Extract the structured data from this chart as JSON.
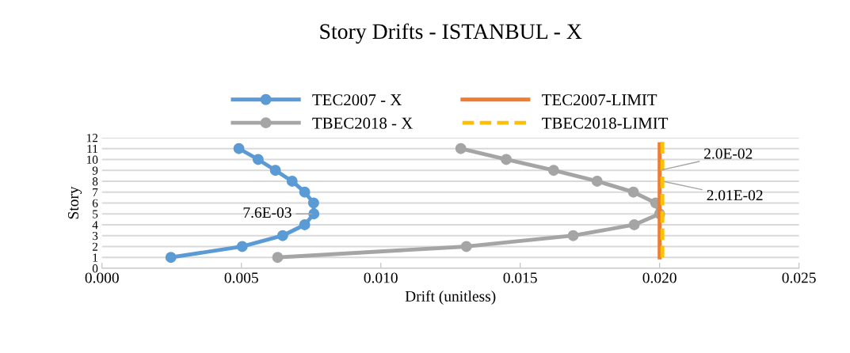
{
  "chart_data": {
    "type": "line",
    "title": "Story Drifts - ISTANBUL - X",
    "xlabel": "Drift (unitless)",
    "ylabel": "Story",
    "xlim": [
      0,
      0.025
    ],
    "xticks": [
      {
        "value": 0,
        "label": "0.000"
      },
      {
        "value": 0.005,
        "label": "0.005"
      },
      {
        "value": 0.01,
        "label": "0.010"
      },
      {
        "value": 0.015,
        "label": "0.015"
      },
      {
        "value": 0.02,
        "label": "0.020"
      },
      {
        "value": 0.025,
        "label": "0.025"
      }
    ],
    "ylim": [
      0,
      12
    ],
    "yticks": [
      0,
      1,
      2,
      3,
      4,
      5,
      6,
      7,
      8,
      9,
      10,
      11,
      12
    ],
    "grid": "y",
    "legend": "top",
    "series": [
      {
        "name": "TEC2007 - X",
        "color": "#5b9bd5",
        "marker": "circle",
        "line_style": "solid",
        "x": [
          0.00247,
          0.00503,
          0.00648,
          0.00727,
          0.0076,
          0.00759,
          0.00727,
          0.00682,
          0.00622,
          0.0056,
          0.00491
        ],
        "values": [
          1,
          2,
          3,
          4,
          5,
          6,
          7,
          8,
          9,
          10,
          11
        ]
      },
      {
        "name": "TBEC2018 - X",
        "color": "#a5a5a5",
        "marker": "circle",
        "line_style": "solid",
        "x": [
          0.0063,
          0.01307,
          0.0169,
          0.01909,
          0.02,
          0.01986,
          0.01906,
          0.01776,
          0.0162,
          0.0145,
          0.01287
        ],
        "values": [
          1,
          2,
          3,
          4,
          5,
          6,
          7,
          8,
          9,
          10,
          11
        ]
      },
      {
        "name": "TEC2007-LIMIT",
        "color": "#ed7d31",
        "marker": "none",
        "line_style": "solid",
        "x": [
          0.02,
          0.02
        ],
        "values": [
          1,
          11.4
        ]
      },
      {
        "name": "TBEC2018-LIMIT",
        "color": "#ffc000",
        "marker": "none",
        "line_style": "dashed",
        "x": [
          0.0201,
          0.0201
        ],
        "values": [
          1,
          12
        ]
      }
    ],
    "annotations": [
      {
        "text": "7.6E-03",
        "x": 0.0076,
        "y": 5
      },
      {
        "text": "2.0E-02",
        "x": 0.02,
        "y": 9
      },
      {
        "text": "2.01E-02",
        "x": 0.0201,
        "y": 8
      }
    ]
  }
}
